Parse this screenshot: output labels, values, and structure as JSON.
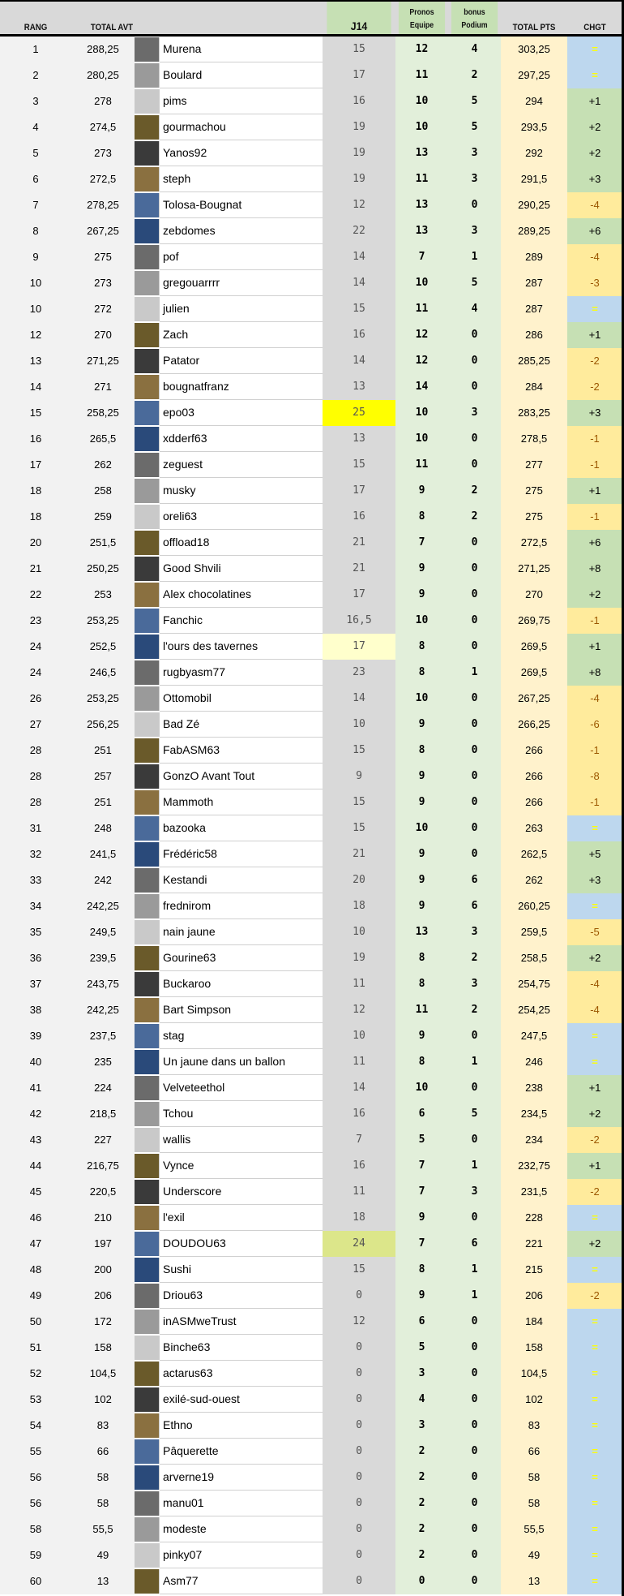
{
  "header": {
    "rang": "RANG",
    "total_avt": "TOTAL AVT",
    "j14": "J14",
    "pronos": "Pronos Equipe",
    "bonus": "bonus Podium",
    "total_pts": "TOTAL PTS",
    "chgt": "CHGT"
  },
  "colors": {
    "equal_bg": "#bdd7ee",
    "up_bg": "#c6e0b4",
    "down_bg": "#ffeb9c",
    "j14_bg": "#d9d9d9",
    "pronos_bg": "#e2efda",
    "total_bg": "#fff2cc",
    "highlight_yellow": "#ffff00"
  },
  "highlights": {
    "15": "#ffff00",
    "24": "#ffffcc",
    "47": "#dce68a"
  },
  "rows": [
    [
      "1",
      "288,25",
      "Murena",
      "15",
      "12",
      "4",
      "303,25",
      "="
    ],
    [
      "2",
      "280,25",
      "Boulard",
      "17",
      "11",
      "2",
      "297,25",
      "="
    ],
    [
      "3",
      "278",
      "pims",
      "16",
      "10",
      "5",
      "294",
      "+1"
    ],
    [
      "4",
      "274,5",
      "gourmachou",
      "19",
      "10",
      "5",
      "293,5",
      "+2"
    ],
    [
      "5",
      "273",
      "Yanos92",
      "19",
      "13",
      "3",
      "292",
      "+2"
    ],
    [
      "6",
      "272,5",
      "steph",
      "19",
      "11",
      "3",
      "291,5",
      "+3"
    ],
    [
      "7",
      "278,25",
      "Tolosa-Bougnat",
      "12",
      "13",
      "0",
      "290,25",
      "-4"
    ],
    [
      "8",
      "267,25",
      "zebdomes",
      "22",
      "13",
      "3",
      "289,25",
      "+6"
    ],
    [
      "9",
      "275",
      "pof",
      "14",
      "7",
      "1",
      "289",
      "-4"
    ],
    [
      "10",
      "273",
      "gregouarrrr",
      "14",
      "10",
      "5",
      "287",
      "-3"
    ],
    [
      "10",
      "272",
      "julien",
      "15",
      "11",
      "4",
      "287",
      "="
    ],
    [
      "12",
      "270",
      "Zach",
      "16",
      "12",
      "0",
      "286",
      "+1"
    ],
    [
      "13",
      "271,25",
      "Patator",
      "14",
      "12",
      "0",
      "285,25",
      "-2"
    ],
    [
      "14",
      "271",
      "bougnatfranz",
      "13",
      "14",
      "0",
      "284",
      "-2"
    ],
    [
      "15",
      "258,25",
      "epo03",
      "25",
      "10",
      "3",
      "283,25",
      "+3"
    ],
    [
      "16",
      "265,5",
      "xdderf63",
      "13",
      "10",
      "0",
      "278,5",
      "-1"
    ],
    [
      "17",
      "262",
      "zeguest",
      "15",
      "11",
      "0",
      "277",
      "-1"
    ],
    [
      "18",
      "258",
      "musky",
      "17",
      "9",
      "2",
      "275",
      "+1"
    ],
    [
      "18",
      "259",
      "oreli63",
      "16",
      "8",
      "2",
      "275",
      "-1"
    ],
    [
      "20",
      "251,5",
      "offload18",
      "21",
      "7",
      "0",
      "272,5",
      "+6"
    ],
    [
      "21",
      "250,25",
      "Good Shvili",
      "21",
      "9",
      "0",
      "271,25",
      "+8"
    ],
    [
      "22",
      "253",
      "Alex chocolatines",
      "17",
      "9",
      "0",
      "270",
      "+2"
    ],
    [
      "23",
      "253,25",
      "Fanchic",
      "16,5",
      "10",
      "0",
      "269,75",
      "-1"
    ],
    [
      "24",
      "252,5",
      "l'ours des tavernes",
      "17",
      "8",
      "0",
      "269,5",
      "+1"
    ],
    [
      "24",
      "246,5",
      "rugbyasm77",
      "23",
      "8",
      "1",
      "269,5",
      "+8"
    ],
    [
      "26",
      "253,25",
      "Ottomobil",
      "14",
      "10",
      "0",
      "267,25",
      "-4"
    ],
    [
      "27",
      "256,25",
      "Bad Zé",
      "10",
      "9",
      "0",
      "266,25",
      "-6"
    ],
    [
      "28",
      "251",
      "FabASM63",
      "15",
      "8",
      "0",
      "266",
      "-1"
    ],
    [
      "28",
      "257",
      "GonzO Avant Tout",
      "9",
      "9",
      "0",
      "266",
      "-8"
    ],
    [
      "28",
      "251",
      "Mammoth",
      "15",
      "9",
      "0",
      "266",
      "-1"
    ],
    [
      "31",
      "248",
      "bazooka",
      "15",
      "10",
      "0",
      "263",
      "="
    ],
    [
      "32",
      "241,5",
      "Frédéric58",
      "21",
      "9",
      "0",
      "262,5",
      "+5"
    ],
    [
      "33",
      "242",
      "Kestandi",
      "20",
      "9",
      "6",
      "262",
      "+3"
    ],
    [
      "34",
      "242,25",
      "frednirom",
      "18",
      "9",
      "6",
      "260,25",
      "="
    ],
    [
      "35",
      "249,5",
      "nain jaune",
      "10",
      "13",
      "3",
      "259,5",
      "-5"
    ],
    [
      "36",
      "239,5",
      "Gourine63",
      "19",
      "8",
      "2",
      "258,5",
      "+2"
    ],
    [
      "37",
      "243,75",
      "Buckaroo",
      "11",
      "8",
      "3",
      "254,75",
      "-4"
    ],
    [
      "38",
      "242,25",
      "Bart Simpson",
      "12",
      "11",
      "2",
      "254,25",
      "-4"
    ],
    [
      "39",
      "237,5",
      "stag",
      "10",
      "9",
      "0",
      "247,5",
      "="
    ],
    [
      "40",
      "235",
      "Un jaune dans un ballon",
      "11",
      "8",
      "1",
      "246",
      "="
    ],
    [
      "41",
      "224",
      "Velveteethol",
      "14",
      "10",
      "0",
      "238",
      "+1"
    ],
    [
      "42",
      "218,5",
      "Tchou",
      "16",
      "6",
      "5",
      "234,5",
      "+2"
    ],
    [
      "43",
      "227",
      "wallis",
      "7",
      "5",
      "0",
      "234",
      "-2"
    ],
    [
      "44",
      "216,75",
      "Vynce",
      "16",
      "7",
      "1",
      "232,75",
      "+1"
    ],
    [
      "45",
      "220,5",
      "Underscore",
      "11",
      "7",
      "3",
      "231,5",
      "-2"
    ],
    [
      "46",
      "210",
      "l'exil",
      "18",
      "9",
      "0",
      "228",
      "="
    ],
    [
      "47",
      "197",
      "DOUDOU63",
      "24",
      "7",
      "6",
      "221",
      "+2"
    ],
    [
      "48",
      "200",
      "Sushi",
      "15",
      "8",
      "1",
      "215",
      "="
    ],
    [
      "49",
      "206",
      "Driou63",
      "0",
      "9",
      "1",
      "206",
      "-2"
    ],
    [
      "50",
      "172",
      "inASMweTrust",
      "12",
      "6",
      "0",
      "184",
      "="
    ],
    [
      "51",
      "158",
      "Binche63",
      "0",
      "5",
      "0",
      "158",
      "="
    ],
    [
      "52",
      "104,5",
      "actarus63",
      "0",
      "3",
      "0",
      "104,5",
      "="
    ],
    [
      "53",
      "102",
      "exilé-sud-ouest",
      "0",
      "4",
      "0",
      "102",
      "="
    ],
    [
      "54",
      "83",
      "Ethno",
      "0",
      "3",
      "0",
      "83",
      "="
    ],
    [
      "55",
      "66",
      "Pâquerette",
      "0",
      "2",
      "0",
      "66",
      "="
    ],
    [
      "56",
      "58",
      "arverne19",
      "0",
      "2",
      "0",
      "58",
      "="
    ],
    [
      "56",
      "58",
      "manu01",
      "0",
      "2",
      "0",
      "58",
      "="
    ],
    [
      "58",
      "55,5",
      "modeste",
      "0",
      "2",
      "0",
      "55,5",
      "="
    ],
    [
      "59",
      "49",
      "pinky07",
      "0",
      "2",
      "0",
      "49",
      "="
    ],
    [
      "60",
      "13",
      "Asm77",
      "0",
      "0",
      "0",
      "13",
      "="
    ]
  ]
}
